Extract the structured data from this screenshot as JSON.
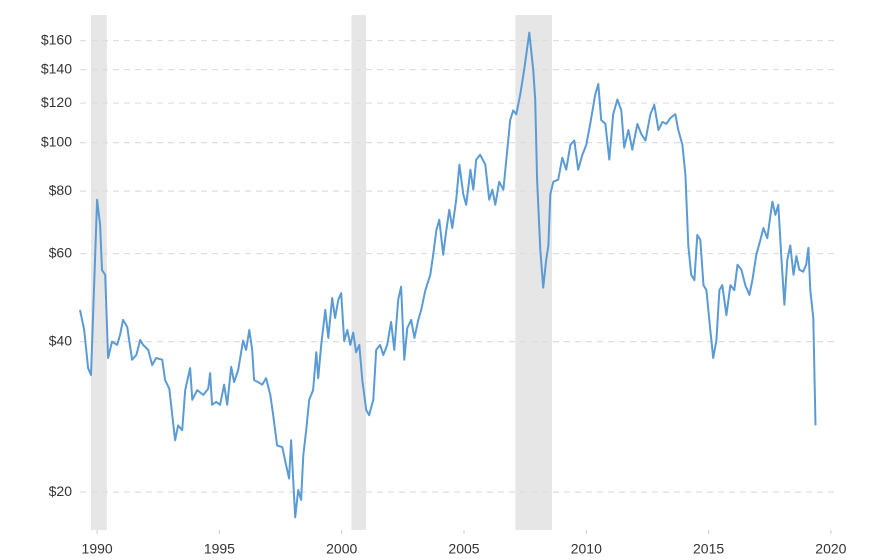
{
  "chart_data": {
    "type": "line",
    "x": [
      1989.3,
      1989.47,
      1989.63,
      1989.75,
      1990.0,
      1990.12,
      1990.2,
      1990.33,
      1990.45,
      1990.61,
      1990.82,
      1990.94,
      1991.06,
      1991.23,
      1991.43,
      1991.6,
      1991.76,
      1991.88,
      1992.09,
      1992.25,
      1992.41,
      1992.66,
      1992.78,
      1992.95,
      1993.19,
      1993.31,
      1993.48,
      1993.6,
      1993.8,
      1993.89,
      1994.09,
      1994.34,
      1994.54,
      1994.62,
      1994.7,
      1994.87,
      1995.03,
      1995.19,
      1995.32,
      1995.48,
      1995.6,
      1995.77,
      1995.97,
      1996.09,
      1996.22,
      1996.34,
      1996.42,
      1996.58,
      1996.75,
      1996.91,
      1997.08,
      1997.2,
      1997.36,
      1997.57,
      1997.73,
      1997.85,
      1997.93,
      1998.1,
      1998.22,
      1998.34,
      1998.43,
      1998.55,
      1998.67,
      1998.83,
      1998.96,
      1999.04,
      1999.16,
      1999.33,
      1999.45,
      1999.61,
      1999.73,
      1999.86,
      1999.98,
      2000.1,
      2000.23,
      2000.35,
      2000.47,
      2000.59,
      2000.72,
      2000.84,
      2001.0,
      2001.12,
      2001.29,
      2001.41,
      2001.57,
      2001.7,
      2001.86,
      2002.02,
      2002.15,
      2002.31,
      2002.43,
      2002.56,
      2002.68,
      2002.84,
      2002.97,
      2003.13,
      2003.25,
      2003.42,
      2003.62,
      2003.74,
      2003.87,
      2003.99,
      2004.15,
      2004.27,
      2004.4,
      2004.52,
      2004.68,
      2004.81,
      2004.97,
      2005.09,
      2005.26,
      2005.38,
      2005.5,
      2005.66,
      2005.87,
      2006.03,
      2006.16,
      2006.28,
      2006.44,
      2006.61,
      2006.77,
      2006.89,
      2007.01,
      2007.14,
      2007.3,
      2007.46,
      2007.67,
      2007.83,
      2007.91,
      2007.99,
      2008.12,
      2008.24,
      2008.36,
      2008.45,
      2008.53,
      2008.65,
      2008.85,
      2009.02,
      2009.18,
      2009.35,
      2009.51,
      2009.67,
      2009.84,
      2010.0,
      2010.16,
      2010.37,
      2010.49,
      2010.61,
      2010.78,
      2010.94,
      2011.1,
      2011.27,
      2011.43,
      2011.55,
      2011.72,
      2011.88,
      2012.09,
      2012.25,
      2012.42,
      2012.62,
      2012.78,
      2012.95,
      2013.11,
      2013.27,
      2013.44,
      2013.64,
      2013.76,
      2013.93,
      2014.05,
      2014.17,
      2014.29,
      2014.42,
      2014.54,
      2014.66,
      2014.79,
      2014.91,
      2015.07,
      2015.19,
      2015.32,
      2015.44,
      2015.56,
      2015.73,
      2015.89,
      2016.05,
      2016.18,
      2016.34,
      2016.5,
      2016.67,
      2016.79,
      2016.95,
      2017.12,
      2017.24,
      2017.4,
      2017.53,
      2017.61,
      2017.73,
      2017.85,
      2017.98,
      2018.1,
      2018.22,
      2018.34,
      2018.47,
      2018.59,
      2018.71,
      2018.87,
      2018.99,
      2019.08,
      2019.16,
      2019.28,
      2019.37
    ],
    "values": [
      46.3,
      42.2,
      35.4,
      34.3,
      76.9,
      68.5,
      55.6,
      54.4,
      37.1,
      40.0,
      39.4,
      41.3,
      44.2,
      42.8,
      36.8,
      37.6,
      40.3,
      39.4,
      38.5,
      35.9,
      37.1,
      36.8,
      33.5,
      32.2,
      25.4,
      27.2,
      26.6,
      32.0,
      35.4,
      30.6,
      32.0,
      31.3,
      32.2,
      34.6,
      29.9,
      30.3,
      29.9,
      32.8,
      29.9,
      35.6,
      33.2,
      35.1,
      40.2,
      38.5,
      42.2,
      38.5,
      33.5,
      33.2,
      32.8,
      33.8,
      31.3,
      28.5,
      24.8,
      24.6,
      22.6,
      21.3,
      25.4,
      17.8,
      20.2,
      19.3,
      23.7,
      26.6,
      30.6,
      32.0,
      38.1,
      33.8,
      39.4,
      46.3,
      40.7,
      48.9,
      44.6,
      48.5,
      50.0,
      40.1,
      42.2,
      39.4,
      41.7,
      38.1,
      39.4,
      33.5,
      29.2,
      28.5,
      30.6,
      38.5,
      39.4,
      37.6,
      39.4,
      43.8,
      38.5,
      48.5,
      51.5,
      36.8,
      42.6,
      44.2,
      40.7,
      44.2,
      46.3,
      50.7,
      54.4,
      59.7,
      66.9,
      70.1,
      59.7,
      66.3,
      73.4,
      67.5,
      76.9,
      90.4,
      78.8,
      75.1,
      88.3,
      80.5,
      92.5,
      94.6,
      90.4,
      76.9,
      80.5,
      75.1,
      83.5,
      80.5,
      96.8,
      111,
      116,
      114,
      125,
      140,
      166,
      140,
      122,
      84.3,
      61.1,
      51.3,
      58.3,
      62.3,
      78.8,
      83.5,
      84.3,
      93.3,
      88.3,
      99.0,
      101,
      88.3,
      94.6,
      99.0,
      109,
      125,
      131,
      111,
      109,
      92.5,
      114,
      122,
      116,
      97.7,
      106,
      96.8,
      109,
      104,
      101,
      114,
      119,
      106,
      110,
      109,
      112,
      114,
      106,
      99.0,
      86.3,
      62.3,
      54.4,
      53.1,
      65.4,
      63.9,
      51.9,
      50.7,
      42.2,
      37.1,
      40.2,
      50.7,
      51.9,
      45.2,
      51.9,
      50.7,
      57.0,
      55.7,
      51.9,
      49.6,
      53.1,
      59.7,
      63.9,
      67.5,
      64.4,
      71.7,
      76.2,
      71.7,
      75.1,
      58.3,
      47.4,
      58.3,
      62.3,
      54.4,
      59.3,
      55.7,
      55.2,
      57.0,
      61.6,
      50.7,
      44.6,
      27.2
    ],
    "color": "#5b9bd5",
    "recessions": [
      {
        "start": 1989.75,
        "end": 1990.4
      },
      {
        "start": 2000.4,
        "end": 2001.0
      },
      {
        "start": 2007.1,
        "end": 2008.6
      }
    ],
    "recession_color": "#e6e6e6",
    "xlim": [
      1989.3,
      2020.25
    ],
    "xticks": [
      1990,
      1995,
      2000,
      2005,
      2010,
      2015,
      2020
    ],
    "ylim": [
      16.8,
      180
    ],
    "log_y": true,
    "yticks": [
      {
        "value": 20,
        "label": "$20"
      },
      {
        "value": 40,
        "label": "$40"
      },
      {
        "value": 60,
        "label": "$60"
      },
      {
        "value": 80,
        "label": "$80"
      },
      {
        "value": 100,
        "label": "$100"
      },
      {
        "value": 120,
        "label": "$120"
      },
      {
        "value": 140,
        "label": "$140"
      },
      {
        "value": 160,
        "label": "$160"
      }
    ],
    "grid": true
  }
}
